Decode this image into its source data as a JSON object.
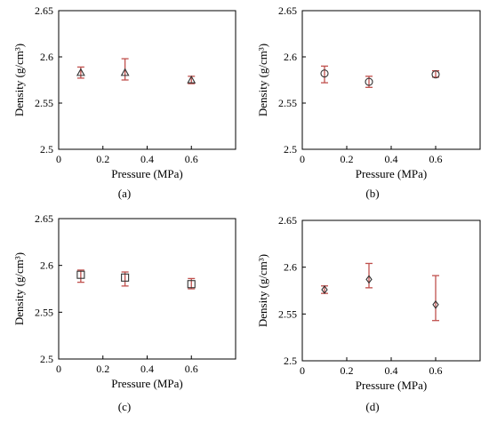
{
  "chart_data": [
    {
      "type": "scatter",
      "panel_label": "(a)",
      "xlabel": "Pressure (MPa)",
      "ylabel": "Density (g/cm³)",
      "xlim": [
        0,
        0.8
      ],
      "ylim": [
        2.5,
        2.65
      ],
      "xticks": [
        "0",
        "0.2",
        "0.4",
        "0.6"
      ],
      "yticks": [
        "2.5",
        "2.55",
        "2.6",
        "2.65"
      ],
      "marker": "triangle",
      "error_bar_color": "#c0504d",
      "points": [
        {
          "x": 0.1,
          "y": 2.583,
          "err_low": 2.577,
          "err_high": 2.589
        },
        {
          "x": 0.3,
          "y": 2.583,
          "err_low": 2.575,
          "err_high": 2.598
        },
        {
          "x": 0.6,
          "y": 2.575,
          "err_low": 2.571,
          "err_high": 2.579
        }
      ]
    },
    {
      "type": "scatter",
      "panel_label": "(b)",
      "xlabel": "Pressure (MPa)",
      "ylabel": "Density (g/cm³)",
      "xlim": [
        0,
        0.8
      ],
      "ylim": [
        2.5,
        2.65
      ],
      "xticks": [
        "0",
        "0.2",
        "0.4",
        "0.6"
      ],
      "yticks": [
        "2.5",
        "2.55",
        "2.6",
        "2.65"
      ],
      "marker": "circle",
      "error_bar_color": "#c0504d",
      "points": [
        {
          "x": 0.1,
          "y": 2.582,
          "err_low": 2.572,
          "err_high": 2.59
        },
        {
          "x": 0.3,
          "y": 2.573,
          "err_low": 2.567,
          "err_high": 2.579
        },
        {
          "x": 0.6,
          "y": 2.581,
          "err_low": 2.578,
          "err_high": 2.585
        }
      ]
    },
    {
      "type": "scatter",
      "panel_label": "(c)",
      "xlabel": "Pressure (MPa)",
      "ylabel": "Density (g/cm³)",
      "xlim": [
        0,
        0.8
      ],
      "ylim": [
        2.5,
        2.65
      ],
      "xticks": [
        "0",
        "0.2",
        "0.4",
        "0.6"
      ],
      "yticks": [
        "2.5",
        "2.55",
        "2.6",
        "2.65"
      ],
      "marker": "square",
      "error_bar_color": "#c0504d",
      "points": [
        {
          "x": 0.1,
          "y": 2.59,
          "err_low": 2.582,
          "err_high": 2.595
        },
        {
          "x": 0.3,
          "y": 2.587,
          "err_low": 2.578,
          "err_high": 2.593
        },
        {
          "x": 0.6,
          "y": 2.58,
          "err_low": 2.575,
          "err_high": 2.586
        }
      ]
    },
    {
      "type": "scatter",
      "panel_label": "(d)",
      "xlabel": "Pressure (MPa)",
      "ylabel": "Density (g/cm³)",
      "xlim": [
        0,
        0.8
      ],
      "ylim": [
        2.5,
        2.65
      ],
      "xticks": [
        "0",
        "0.2",
        "0.4",
        "0.6"
      ],
      "yticks": [
        "2.5",
        "2.55",
        "2.6",
        "2.65"
      ],
      "marker": "diamond",
      "error_bar_color": "#c0504d",
      "points": [
        {
          "x": 0.1,
          "y": 2.576,
          "err_low": 2.572,
          "err_high": 2.58
        },
        {
          "x": 0.3,
          "y": 2.587,
          "err_low": 2.578,
          "err_high": 2.604
        },
        {
          "x": 0.6,
          "y": 2.56,
          "err_low": 2.543,
          "err_high": 2.591
        }
      ]
    }
  ]
}
